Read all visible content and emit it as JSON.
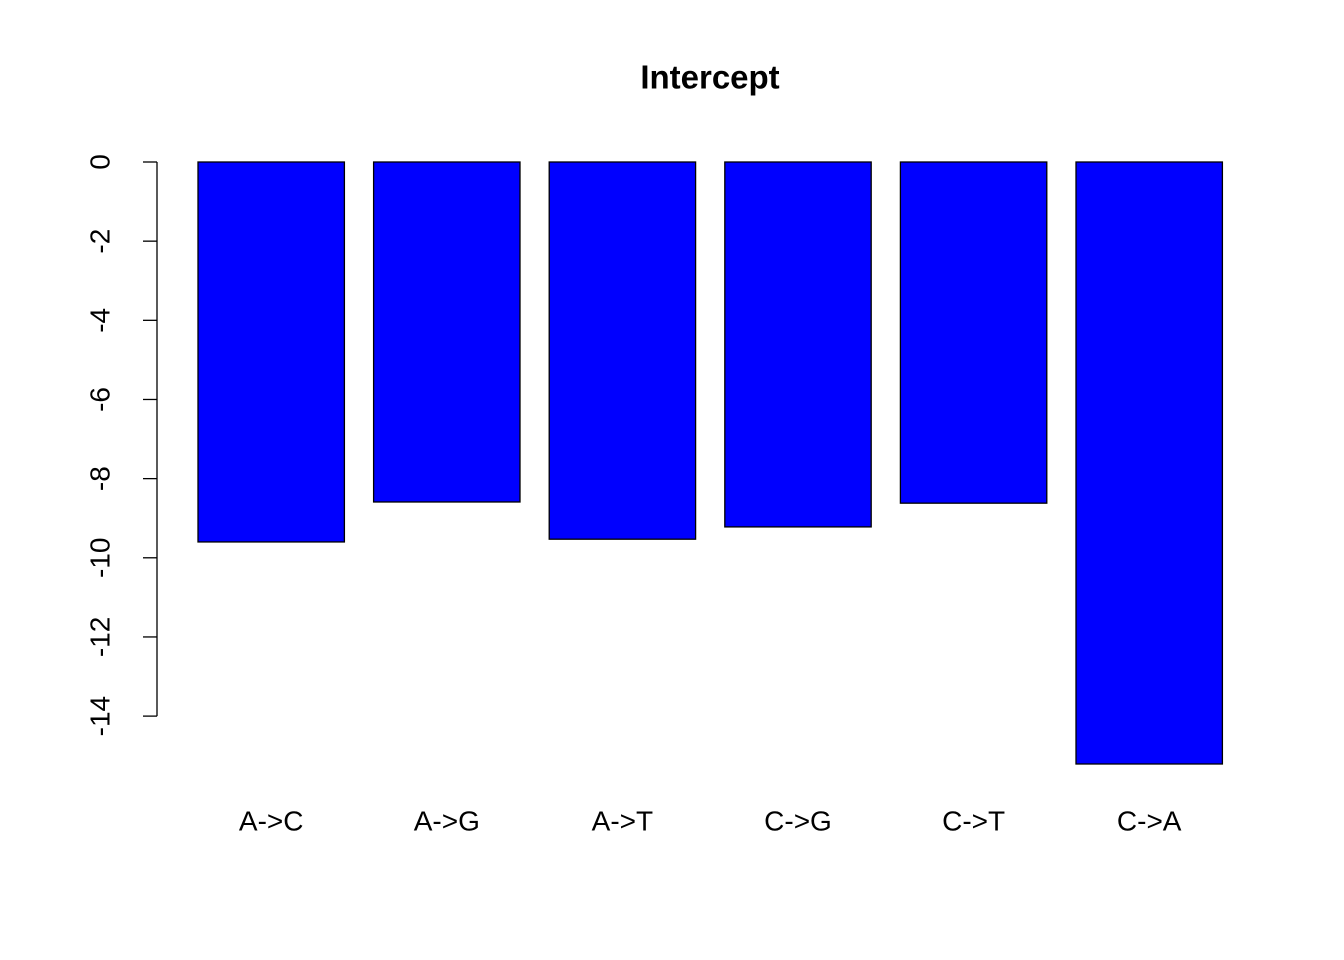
{
  "chart_data": {
    "type": "bar",
    "title": "Intercept",
    "categories": [
      "A->C",
      "A->G",
      "A->T",
      "C->G",
      "C->T",
      "C->A"
    ],
    "values": [
      -9.6,
      -8.59,
      -9.53,
      -9.22,
      -8.62,
      -15.21
    ],
    "color": "#0000ff",
    "ylim": [
      -15.21,
      0
    ],
    "yticks": [
      0,
      -2,
      -4,
      -6,
      -8,
      -10,
      -12,
      -14
    ]
  }
}
